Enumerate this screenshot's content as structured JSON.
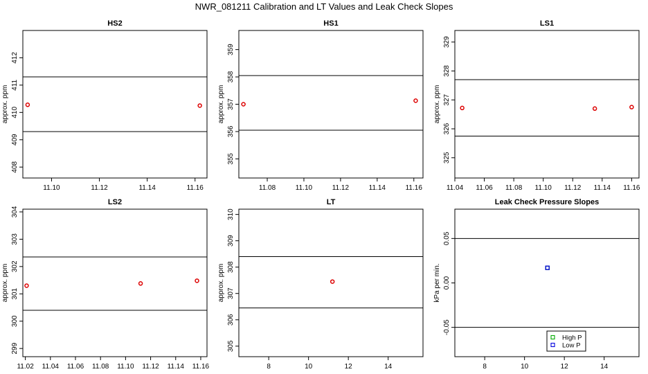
{
  "figure_title": "NWR_081211  Calibration and LT Values and Leak Check Slopes",
  "chart_data": [
    {
      "type": "scatter",
      "title": "HS2",
      "ylabel": "approx. ppm",
      "xlim": [
        11.088,
        11.165
      ],
      "ylim": [
        407.6,
        413.0
      ],
      "xticks": [
        11.1,
        11.12,
        11.14,
        11.16
      ],
      "xtick_labels": [
        "11.10",
        "11.12",
        "11.14",
        "11.16"
      ],
      "yticks": [
        408,
        409,
        410,
        411,
        412
      ],
      "ytick_labels": [
        "408",
        "409",
        "410",
        "411",
        "412"
      ],
      "hlines": [
        409.3,
        411.3
      ],
      "series": [
        {
          "color": "#dd0000",
          "marker": "circle",
          "points": [
            [
              11.09,
              410.28
            ],
            [
              11.162,
              410.25
            ]
          ]
        }
      ]
    },
    {
      "type": "scatter",
      "title": "HS1",
      "ylabel": "approx. ppm",
      "xlim": [
        11.0645,
        11.165
      ],
      "ylim": [
        354.3,
        359.7
      ],
      "xticks": [
        11.08,
        11.1,
        11.12,
        11.14,
        11.16
      ],
      "xtick_labels": [
        "11.08",
        "11.10",
        "11.12",
        "11.14",
        "11.16"
      ],
      "yticks": [
        355,
        356,
        357,
        358,
        359
      ],
      "ytick_labels": [
        "355",
        "356",
        "357",
        "358",
        "359"
      ],
      "hlines": [
        356.05,
        358.05
      ],
      "series": [
        {
          "color": "#dd0000",
          "marker": "circle",
          "points": [
            [
              11.067,
              357.0
            ],
            [
              11.161,
              357.13
            ]
          ]
        }
      ]
    },
    {
      "type": "scatter",
      "title": "LS1",
      "ylabel": "approx. ppm",
      "xlim": [
        11.04,
        11.165
      ],
      "ylim": [
        324.3,
        329.4
      ],
      "xticks": [
        11.04,
        11.06,
        11.08,
        11.1,
        11.12,
        11.14,
        11.16
      ],
      "xtick_labels": [
        "11.04",
        "11.06",
        "11.08",
        "11.10",
        "11.12",
        "11.14",
        "11.16"
      ],
      "yticks": [
        325,
        326,
        327,
        328,
        329
      ],
      "ytick_labels": [
        "325",
        "326",
        "327",
        "328",
        "329"
      ],
      "hlines": [
        325.75,
        327.7
      ],
      "series": [
        {
          "color": "#dd0000",
          "marker": "circle",
          "points": [
            [
              11.045,
              326.72
            ],
            [
              11.135,
              326.7
            ],
            [
              11.16,
              326.75
            ]
          ]
        }
      ]
    },
    {
      "type": "scatter",
      "title": "LS2",
      "ylabel": "approx. ppm",
      "xlim": [
        11.018,
        11.165
      ],
      "ylim": [
        298.7,
        304.1
      ],
      "xticks": [
        11.02,
        11.04,
        11.06,
        11.08,
        11.1,
        11.12,
        11.14,
        11.16
      ],
      "xtick_labels": [
        "11.02",
        "11.04",
        "11.06",
        "11.08",
        "11.10",
        "11.12",
        "11.14",
        "11.16"
      ],
      "yticks": [
        299,
        300,
        301,
        302,
        303,
        304
      ],
      "ytick_labels": [
        "299",
        "300",
        "301",
        "302",
        "303",
        "304"
      ],
      "hlines": [
        300.4,
        302.35
      ],
      "series": [
        {
          "color": "#dd0000",
          "marker": "circle",
          "points": [
            [
              11.021,
              301.3
            ],
            [
              11.112,
              301.38
            ],
            [
              11.157,
              301.48
            ]
          ]
        }
      ]
    },
    {
      "type": "scatter",
      "title": "LT",
      "ylabel": "approx. ppm",
      "xlim": [
        6.5,
        15.75
      ],
      "ylim": [
        304.6,
        310.2
      ],
      "xticks": [
        8,
        10,
        12,
        14
      ],
      "xtick_labels": [
        "8",
        "10",
        "12",
        "14"
      ],
      "yticks": [
        305,
        306,
        307,
        308,
        309,
        310
      ],
      "ytick_labels": [
        "305",
        "306",
        "307",
        "308",
        "309",
        "310"
      ],
      "hlines": [
        306.45,
        308.4
      ],
      "series": [
        {
          "color": "#dd0000",
          "marker": "circle",
          "points": [
            [
              11.2,
              307.45
            ]
          ]
        }
      ]
    },
    {
      "type": "scatter",
      "title": "Leak Check Pressure Slopes",
      "ylabel": "kPa per min.",
      "xlim": [
        6.5,
        15.75
      ],
      "ylim": [
        -0.083,
        0.083
      ],
      "xticks": [
        8,
        10,
        12,
        14
      ],
      "xtick_labels": [
        "8",
        "10",
        "12",
        "14"
      ],
      "yticks": [
        -0.05,
        0.0,
        0.05
      ],
      "ytick_labels": [
        "-0.05",
        "0.00",
        "0.05"
      ],
      "hlines": [
        -0.05,
        0.05
      ],
      "series": [
        {
          "name": "High P",
          "color": "#00aa00",
          "marker": "square",
          "points": [
            [
              11.15,
              0.017
            ]
          ]
        },
        {
          "name": "Low P",
          "color": "#0000dd",
          "marker": "square",
          "points": [
            [
              11.15,
              0.017
            ]
          ]
        }
      ],
      "legend": {
        "position": "bottom-center",
        "entries": [
          "High P",
          "Low P"
        ]
      }
    }
  ]
}
